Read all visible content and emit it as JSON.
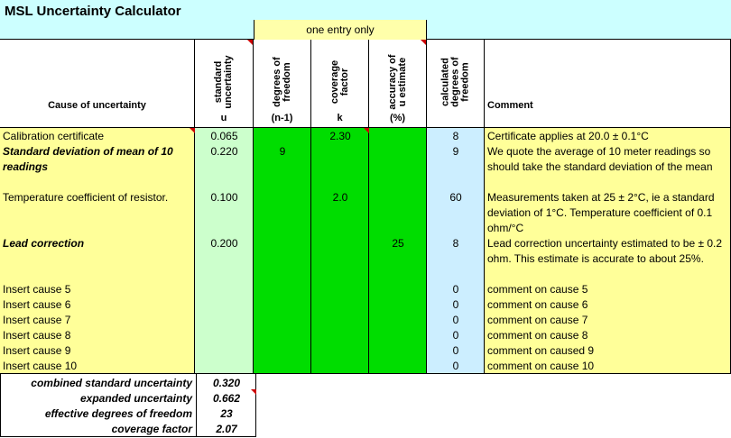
{
  "title": "MSL Uncertainty Calculator",
  "one_entry_note": "one entry only",
  "headers": {
    "cause": "Cause of uncertainty",
    "std_uncertainty": [
      "standard",
      "uncertainty"
    ],
    "std_uncertainty_sym": "u",
    "dof": [
      "degrees of",
      "freedom"
    ],
    "dof_sym": "(n-1)",
    "coverage": [
      "coverage",
      "factor"
    ],
    "coverage_sym": "k",
    "accuracy": [
      "accuracy of",
      "u estimate"
    ],
    "accuracy_sym": "(%)",
    "calc_dof": [
      "calculated",
      "degrees of",
      "freedom"
    ],
    "comment": "Comment"
  },
  "rows": [
    {
      "cause": "Calibration certificate",
      "u": "0.065",
      "dof": "",
      "k": "2.30",
      "acc": "",
      "calc": "8",
      "comment": "Certificate applies at 20.0 ± 0.1°C"
    },
    {
      "cause": "Standard deviation of mean of 10 readings",
      "u": "0.220",
      "dof": "9",
      "k": "",
      "acc": "",
      "calc": "9",
      "comment": "We quote the average of 10 meter readings so should take the standard deviation of the mean"
    },
    {
      "cause": "Temperature coefficient of resistor.",
      "u": "0.100",
      "dof": "",
      "k": "2.0",
      "acc": "",
      "calc": "60",
      "comment": "Measurements taken at 25 ± 2°C, ie a standard deviation of 1°C.  Temperature coefficient of 0.1 ohm/°C"
    },
    {
      "cause": "Lead correction",
      "u": "0.200",
      "dof": "",
      "k": "",
      "acc": "25",
      "calc": "8",
      "comment": "Lead correction uncertainty estimated to be ± 0.2 ohm.  This estimate is accurate to about 25%."
    },
    {
      "cause": "Insert cause 5",
      "u": "",
      "dof": "",
      "k": "",
      "acc": "",
      "calc": "0",
      "comment": "comment on cause 5"
    },
    {
      "cause": "Insert cause 6",
      "u": "",
      "dof": "",
      "k": "",
      "acc": "",
      "calc": "0",
      "comment": "comment on cause 6"
    },
    {
      "cause": "Insert cause 7",
      "u": "",
      "dof": "",
      "k": "",
      "acc": "",
      "calc": "0",
      "comment": "comment on cause 7"
    },
    {
      "cause": "Insert cause 8",
      "u": "",
      "dof": "",
      "k": "",
      "acc": "",
      "calc": "0",
      "comment": "comment on cause 8"
    },
    {
      "cause": "Insert cause 9",
      "u": "",
      "dof": "",
      "k": "",
      "acc": "",
      "calc": "0",
      "comment": "comment on caused 9"
    },
    {
      "cause": "Insert cause 10",
      "u": "",
      "dof": "",
      "k": "",
      "acc": "",
      "calc": "0",
      "comment": "comment on cause 10"
    }
  ],
  "summary": {
    "combined_label": "combined standard uncertainty",
    "combined_value": "0.320",
    "expanded_label": "expanded uncertainty",
    "expanded_value": "0.662",
    "effective_label": "effective degrees of freedom",
    "effective_value": "23",
    "coverage_label": "coverage factor",
    "coverage_value": "2.07"
  },
  "colors": {
    "title_bg": "#ccffff",
    "cause_bg": "#ffff99",
    "u_bg": "#ccffcc",
    "entry_bg": "#00dd00",
    "calc_bg": "#cceeff",
    "comment_bg": "#ffff99"
  }
}
